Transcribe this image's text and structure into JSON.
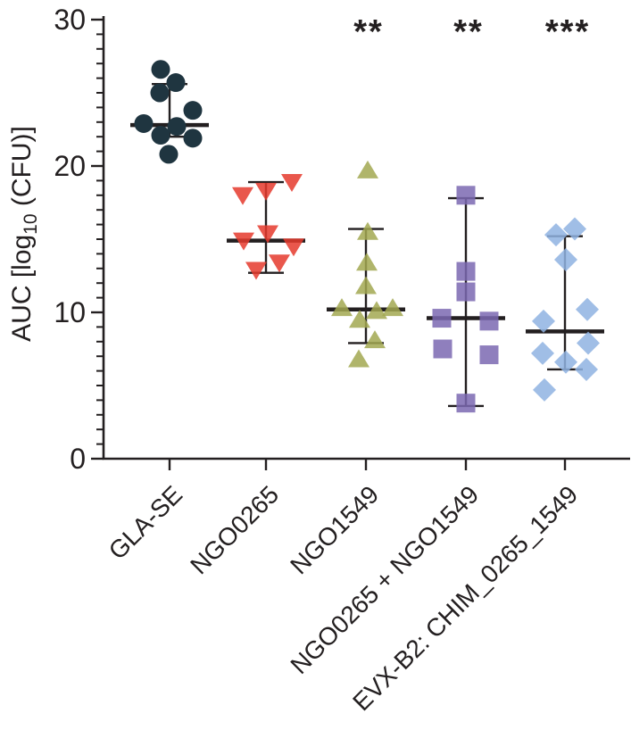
{
  "figure": {
    "background": "#ffffff",
    "axis_color": "#231f20"
  },
  "chart_data": {
    "type": "scatter",
    "subtype": "column-dot-plot-with-median-and-range",
    "title": "",
    "xlabel": "",
    "ylabel": "AUC [log10 (CFU)]",
    "ylabel_parts": {
      "prefix": "AUC [log",
      "subscript": "10",
      "suffix": " (CFU)]"
    },
    "ylim": [
      0,
      30
    ],
    "yticks": [
      0,
      10,
      20,
      30
    ],
    "ytick_labels": [
      "0",
      "10",
      "20",
      "30"
    ],
    "y_minor_step": 1,
    "grid": "off",
    "legend": "none",
    "categories": [
      "GLA-SE",
      "NGO0265",
      "NGO1549",
      "NGO0265 + NGO1549",
      "EVX-B2: CHIM_0265_1549"
    ],
    "groups": [
      {
        "label": "GLA-SE",
        "marker": "circle",
        "color": "#1f3540",
        "significance": "",
        "median": 22.8,
        "whisker_low": 22.0,
        "whisker_high": 25.6,
        "points": [
          {
            "dx": -10,
            "value": 26.6
          },
          {
            "dx": 7,
            "value": 25.7
          },
          {
            "dx": -11,
            "value": 25.0
          },
          {
            "dx": 26,
            "value": 23.8
          },
          {
            "dx": -29,
            "value": 22.9
          },
          {
            "dx": 8,
            "value": 22.7
          },
          {
            "dx": -10,
            "value": 22.1
          },
          {
            "dx": 26,
            "value": 21.9
          },
          {
            "dx": -1,
            "value": 20.8
          }
        ]
      },
      {
        "label": "NGO0265",
        "marker": "triangle-down",
        "color": "#e5392d",
        "significance": "",
        "median": 14.9,
        "whisker_low": 12.7,
        "whisker_high": 18.9,
        "points": [
          {
            "dx": 29,
            "value": 18.9
          },
          {
            "dx": 0,
            "value": 18.3
          },
          {
            "dx": -26,
            "value": 18.0
          },
          {
            "dx": 2,
            "value": 15.4
          },
          {
            "dx": -25,
            "value": 14.9
          },
          {
            "dx": 31,
            "value": 14.5
          },
          {
            "dx": 15,
            "value": 13.4
          },
          {
            "dx": -11,
            "value": 12.9
          }
        ]
      },
      {
        "label": "NGO1549",
        "marker": "triangle-up",
        "color": "#a2a851",
        "significance": "**",
        "median": 10.2,
        "whisker_low": 7.9,
        "whisker_high": 15.7,
        "points": [
          {
            "dx": 2,
            "value": 19.7
          },
          {
            "dx": 2,
            "value": 15.5
          },
          {
            "dx": 1,
            "value": 13.4
          },
          {
            "dx": 0,
            "value": 11.8
          },
          {
            "dx": -27,
            "value": 10.3
          },
          {
            "dx": 30,
            "value": 10.3
          },
          {
            "dx": 12,
            "value": 10.1
          },
          {
            "dx": -7,
            "value": 9.5
          },
          {
            "dx": 10,
            "value": 8.1
          },
          {
            "dx": -8,
            "value": 6.8
          }
        ]
      },
      {
        "label": "NGO0265 + NGO1549",
        "marker": "square",
        "color": "#7b68b2",
        "significance": "**",
        "median": 9.6,
        "whisker_low": 3.6,
        "whisker_high": 17.8,
        "points": [
          {
            "dx": 0,
            "value": 18.0
          },
          {
            "dx": 0,
            "value": 12.8
          },
          {
            "dx": 0,
            "value": 11.4
          },
          {
            "dx": -27,
            "value": 9.6
          },
          {
            "dx": 26,
            "value": 9.4
          },
          {
            "dx": -26,
            "value": 7.5
          },
          {
            "dx": 26,
            "value": 7.1
          },
          {
            "dx": 0,
            "value": 3.8
          }
        ]
      },
      {
        "label": "EVX-B2: CHIM_0265_1549",
        "marker": "diamond",
        "color": "#8fb3e2",
        "significance": "***",
        "median": 8.7,
        "whisker_low": 6.1,
        "whisker_high": 15.2,
        "points": [
          {
            "dx": 11,
            "value": 15.7
          },
          {
            "dx": -10,
            "value": 15.3
          },
          {
            "dx": 1,
            "value": 13.6
          },
          {
            "dx": 25,
            "value": 10.2
          },
          {
            "dx": -24,
            "value": 9.4
          },
          {
            "dx": 26,
            "value": 7.9
          },
          {
            "dx": -25,
            "value": 7.2
          },
          {
            "dx": 1,
            "value": 6.6
          },
          {
            "dx": 24,
            "value": 6.1
          },
          {
            "dx": -23,
            "value": 4.7
          }
        ]
      }
    ]
  }
}
